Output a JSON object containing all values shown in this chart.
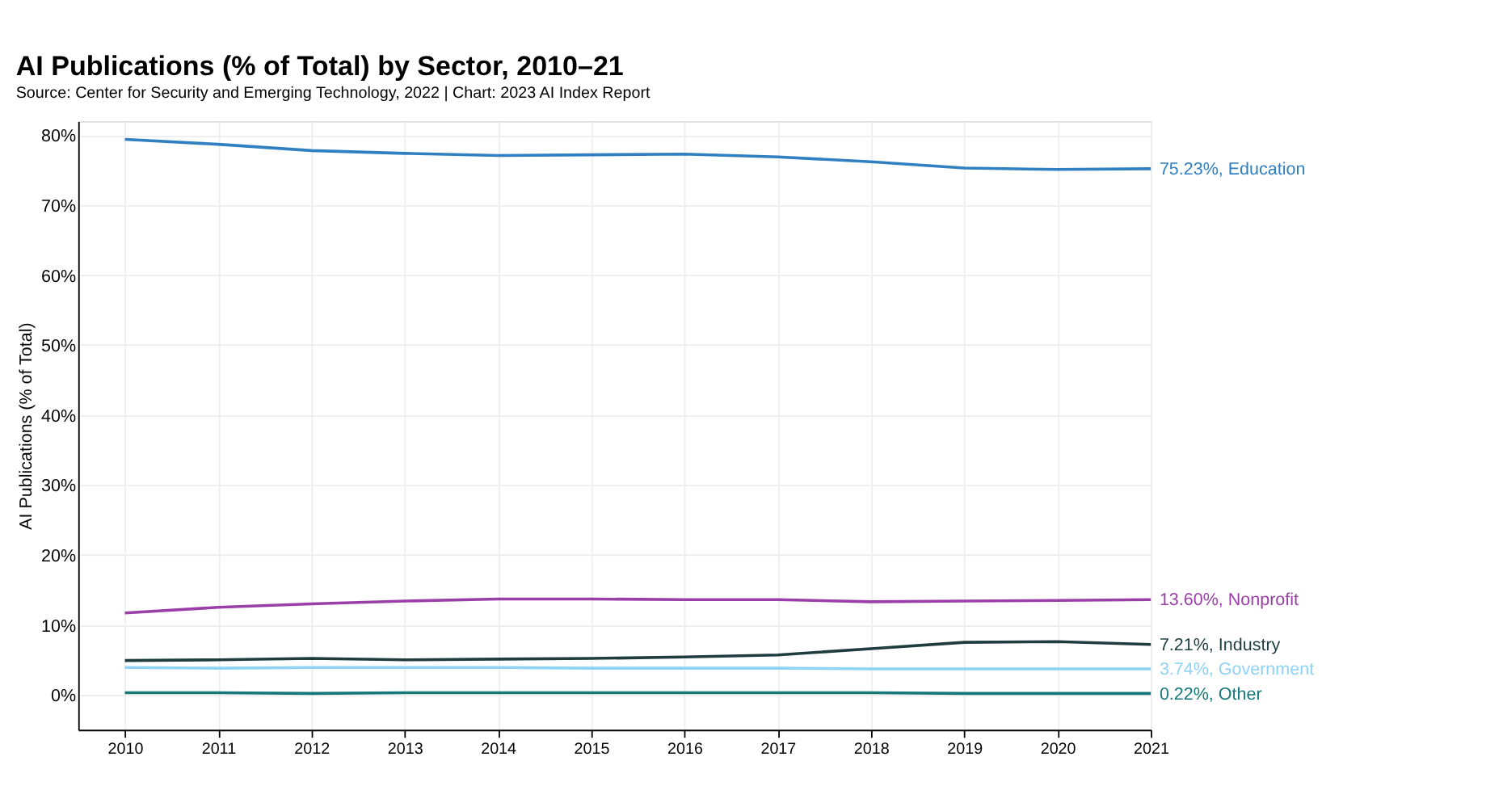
{
  "chart_data": {
    "type": "line",
    "title": "AI Publications (% of Total) by Sector, 2010–21",
    "subtitle": "Source: Center for Security and Emerging Technology, 2022 | Chart: 2023 AI Index Report",
    "ylabel": "AI Publications (% of Total)",
    "x": [
      2010,
      2011,
      2012,
      2013,
      2014,
      2015,
      2016,
      2017,
      2018,
      2019,
      2020,
      2021
    ],
    "series": [
      {
        "color": "#2f7fc1",
        "values": [
          79.4,
          78.7,
          77.8,
          77.4,
          77.1,
          77.2,
          77.3,
          76.9,
          76.2,
          75.3,
          75.1,
          75.2
        ]
      },
      {
        "color": "#9b3fa8",
        "values": [
          11.7,
          12.5,
          13.0,
          13.4,
          13.7,
          13.7,
          13.6,
          13.6,
          13.3,
          13.4,
          13.5,
          13.6
        ]
      },
      {
        "color": "#1f3d3f",
        "values": [
          4.9,
          5.0,
          5.2,
          5.0,
          5.1,
          5.2,
          5.4,
          5.7,
          6.6,
          7.5,
          7.6,
          7.2
        ]
      },
      {
        "color": "#8fd3f5",
        "values": [
          3.9,
          3.8,
          3.9,
          3.9,
          3.9,
          3.8,
          3.8,
          3.8,
          3.7,
          3.7,
          3.7,
          3.7
        ]
      },
      {
        "color": "#17787a",
        "values": [
          0.3,
          0.3,
          0.2,
          0.3,
          0.3,
          0.3,
          0.3,
          0.3,
          0.3,
          0.2,
          0.2,
          0.2
        ]
      }
    ],
    "annotations": [
      "75.23%, Education",
      "13.60%, Nonprofit",
      "7.21%, Industry",
      "3.74%, Government",
      "0.22%, Other"
    ],
    "xlim": [
      2009.5,
      2021
    ],
    "ylim": [
      -5,
      82
    ],
    "xticks": [
      2010,
      2011,
      2012,
      2013,
      2014,
      2015,
      2016,
      2017,
      2018,
      2019,
      2020,
      2021
    ],
    "yticks": [
      {
        "value": 0,
        "label": "0%"
      },
      {
        "value": 10,
        "label": "10%"
      },
      {
        "value": 20,
        "label": "20%"
      },
      {
        "value": 30,
        "label": "30%"
      },
      {
        "value": 40,
        "label": "40%"
      },
      {
        "value": 50,
        "label": "50%"
      },
      {
        "value": 60,
        "label": "60%"
      },
      {
        "value": 70,
        "label": "70%"
      },
      {
        "value": 80,
        "label": "80%"
      }
    ],
    "grid": true,
    "marker": "none",
    "line_style": "solid"
  }
}
